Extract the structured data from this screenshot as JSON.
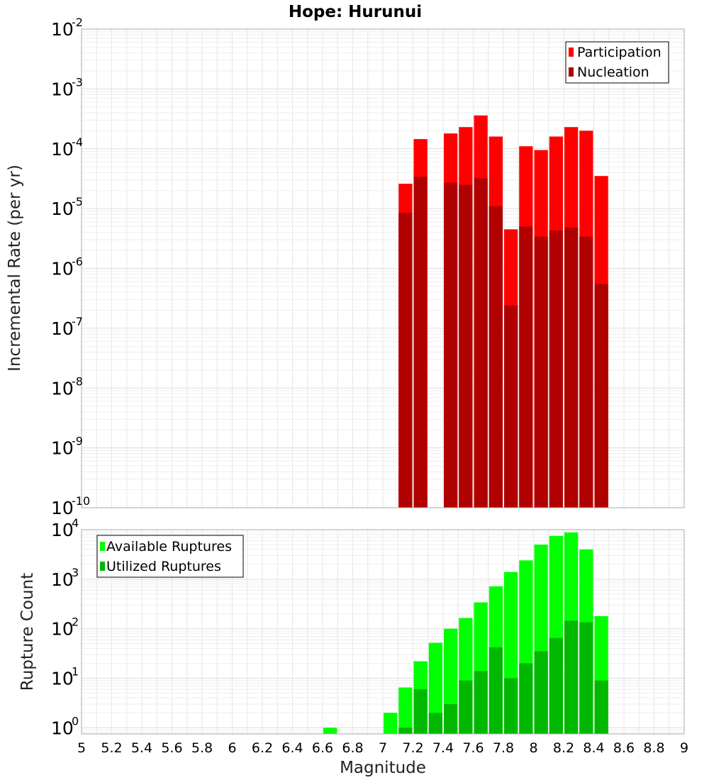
{
  "chart_data": [
    {
      "type": "bar",
      "title": "Hope: Hurunui",
      "xlabel": "Magnitude",
      "ylabel": "Incremental Rate (per yr)",
      "yscale": "log",
      "xlim": [
        5,
        9
      ],
      "ylim": [
        1e-10,
        0.01
      ],
      "ytick_exponents": [
        "-10",
        "-9",
        "-8",
        "-7",
        "-6",
        "-5",
        "-4",
        "-3",
        "-2"
      ],
      "ytick_base": "10",
      "grid": true,
      "legend_position": "top-right",
      "bar_width": 0.1,
      "series": [
        {
          "name": "Participation",
          "color": "#ff0000",
          "x": [
            7.1,
            7.2,
            7.4,
            7.5,
            7.6,
            7.7,
            7.8,
            7.9,
            8.0,
            8.1,
            8.2,
            8.3,
            8.4
          ],
          "values": [
            2.6e-05,
            0.000145,
            0.00018,
            0.00023,
            0.00036,
            0.00016,
            4.5e-06,
            0.00011,
            9.5e-05,
            0.00016,
            0.00023,
            0.0002,
            3.5e-05
          ]
        },
        {
          "name": "Nucleation",
          "color": "#b00000",
          "x": [
            7.1,
            7.2,
            7.4,
            7.5,
            7.6,
            7.7,
            7.8,
            7.9,
            8.0,
            8.1,
            8.2,
            8.3,
            8.4
          ],
          "values": [
            8.5e-06,
            3.4e-05,
            2.7e-05,
            2.5e-05,
            3.2e-05,
            1.1e-05,
            2.4e-07,
            5e-06,
            3.4e-06,
            4.3e-06,
            4.8e-06,
            3.4e-06,
            5.5e-07
          ]
        }
      ]
    },
    {
      "type": "bar",
      "xlabel": "Magnitude",
      "ylabel": "Rupture Count",
      "yscale": "log",
      "xlim": [
        5,
        9
      ],
      "ylim": [
        0.75,
        10000
      ],
      "ytick_exponents": [
        "0",
        "1",
        "2",
        "3",
        "4"
      ],
      "ytick_base": "10",
      "xticks": [
        "5",
        "5.2",
        "5.4",
        "5.6",
        "5.8",
        "6",
        "6.2",
        "6.4",
        "6.6",
        "6.8",
        "7",
        "7.2",
        "7.4",
        "7.6",
        "7.8",
        "8",
        "8.2",
        "8.4",
        "8.6",
        "8.8",
        "9"
      ],
      "grid": true,
      "legend_position": "top-left",
      "bar_width": 0.1,
      "series": [
        {
          "name": "Available Ruptures",
          "color": "#00ff00",
          "x": [
            6.6,
            7.0,
            7.1,
            7.2,
            7.3,
            7.4,
            7.5,
            7.6,
            7.7,
            7.8,
            7.9,
            8.0,
            8.1,
            8.2,
            8.3,
            8.4
          ],
          "values": [
            1,
            2,
            6.5,
            22,
            52,
            100,
            165,
            340,
            720,
            1400,
            2400,
            5000,
            7500,
            8800,
            4000,
            180
          ]
        },
        {
          "name": "Utilized Ruptures",
          "color": "#00b800",
          "x": [
            7.1,
            7.2,
            7.3,
            7.4,
            7.5,
            7.6,
            7.7,
            7.8,
            7.9,
            8.0,
            8.1,
            8.2,
            8.3,
            8.4
          ],
          "values": [
            1,
            6,
            2,
            3,
            9,
            14,
            42,
            10,
            20,
            35,
            65,
            145,
            135,
            9
          ]
        }
      ]
    }
  ]
}
